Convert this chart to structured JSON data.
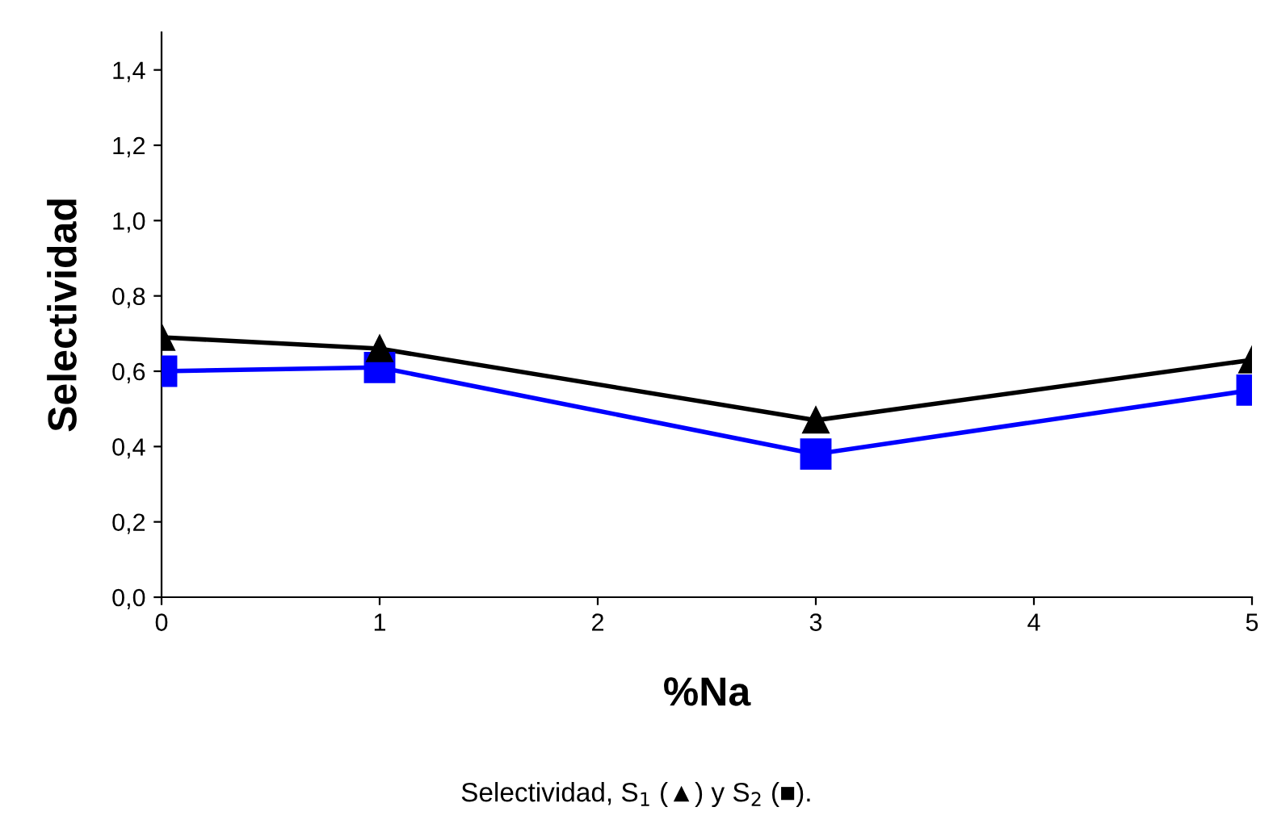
{
  "chart_data": {
    "type": "line",
    "xlabel": "%Na",
    "ylabel": "Selectividad",
    "x": [
      0,
      1,
      3,
      5
    ],
    "series": [
      {
        "color": "#000000",
        "marker": "triangle",
        "values": [
          0.69,
          0.66,
          0.47,
          0.63
        ]
      },
      {
        "color": "#0000ff",
        "marker": "square",
        "values": [
          0.6,
          0.61,
          0.38,
          0.55
        ]
      }
    ],
    "xlim": [
      0,
      5
    ],
    "xticks": [
      0,
      1,
      2,
      3,
      4,
      5
    ],
    "ylim": [
      0,
      1.5
    ],
    "yticks": [
      {
        "value": 0,
        "label": "0,0"
      },
      {
        "value": 0.2,
        "label": "0,2"
      },
      {
        "value": 0.4,
        "label": "0,4"
      },
      {
        "value": 0.6,
        "label": "0,6"
      },
      {
        "value": 0.8,
        "label": "0,8"
      },
      {
        "value": 1.0,
        "label": "1,0"
      },
      {
        "value": 1.2,
        "label": "1,2"
      },
      {
        "value": 1.4,
        "label": "1,4"
      }
    ],
    "grid": false,
    "legend": false,
    "line_style": "solid",
    "annotations": [
      "Selectividad, S$_{1}$ (▲) y S$_{2}$ (■)."
    ]
  }
}
